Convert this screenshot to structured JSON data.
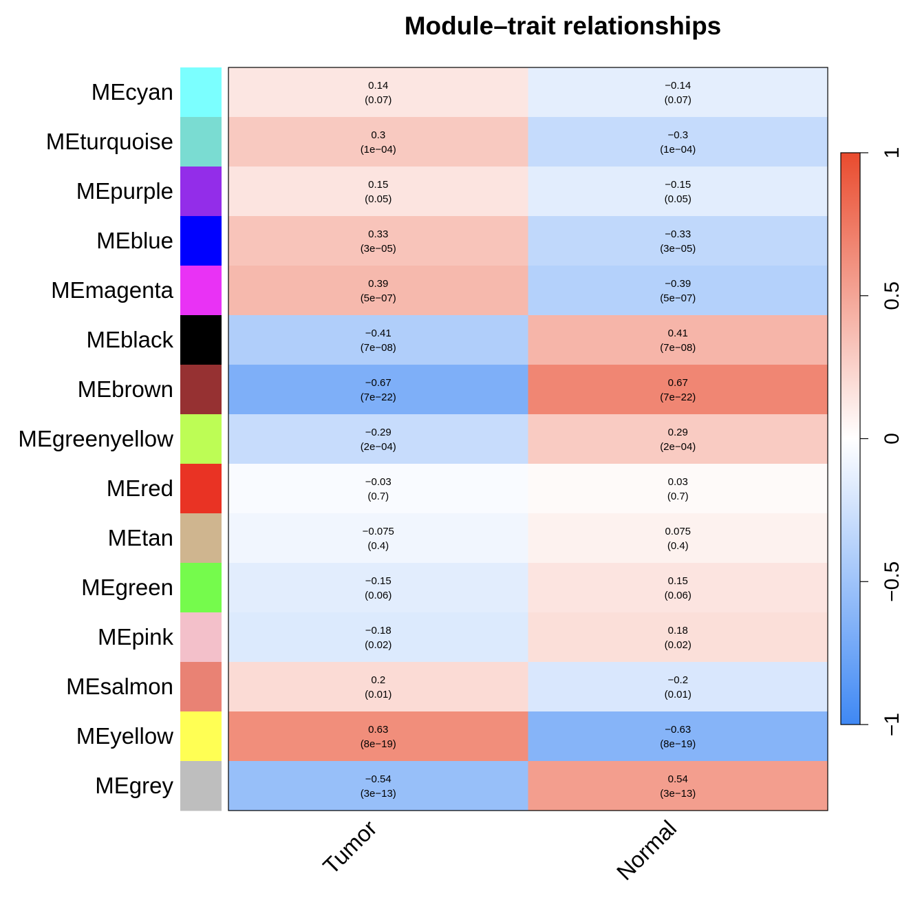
{
  "chart_data": {
    "type": "heatmap",
    "title": "Module–trait relationships",
    "rows": [
      {
        "label": "MEcyan",
        "module_color": "#7BFFFF"
      },
      {
        "label": "MEturquoise",
        "module_color": "#7ADCD2"
      },
      {
        "label": "MEpurple",
        "module_color": "#932DE9"
      },
      {
        "label": "MEblue",
        "module_color": "#0000FF"
      },
      {
        "label": "MEmagenta",
        "module_color": "#E932F5"
      },
      {
        "label": "MEblack",
        "module_color": "#000000"
      },
      {
        "label": "MEbrown",
        "module_color": "#963132"
      },
      {
        "label": "MEgreenyellow",
        "module_color": "#BDFD55"
      },
      {
        "label": "MEred",
        "module_color": "#E93324"
      },
      {
        "label": "MEtan",
        "module_color": "#CFB58F"
      },
      {
        "label": "MEgreen",
        "module_color": "#75FB4C"
      },
      {
        "label": "MEpink",
        "module_color": "#F3C0CA"
      },
      {
        "label": "MEsalmon",
        "module_color": "#E98274"
      },
      {
        "label": "MEyellow",
        "module_color": "#FFFF54"
      },
      {
        "label": "MEgrey",
        "module_color": "#BEBEBE"
      }
    ],
    "columns": [
      "Tumor",
      "Normal"
    ],
    "values": [
      [
        0.14,
        -0.14
      ],
      [
        0.3,
        -0.3
      ],
      [
        0.15,
        -0.15
      ],
      [
        0.33,
        -0.33
      ],
      [
        0.39,
        -0.39
      ],
      [
        -0.41,
        0.41
      ],
      [
        -0.67,
        0.67
      ],
      [
        -0.29,
        0.29
      ],
      [
        -0.03,
        0.03
      ],
      [
        -0.075,
        0.075
      ],
      [
        -0.15,
        0.15
      ],
      [
        -0.18,
        0.18
      ],
      [
        0.2,
        -0.2
      ],
      [
        0.63,
        -0.63
      ],
      [
        -0.54,
        0.54
      ]
    ],
    "cell_text": [
      [
        [
          "0.14",
          "(0.07)"
        ],
        [
          "−0.14",
          "(0.07)"
        ]
      ],
      [
        [
          "0.3",
          "(1e−04)"
        ],
        [
          "−0.3",
          "(1e−04)"
        ]
      ],
      [
        [
          "0.15",
          "(0.05)"
        ],
        [
          "−0.15",
          "(0.05)"
        ]
      ],
      [
        [
          "0.33",
          "(3e−05)"
        ],
        [
          "−0.33",
          "(3e−05)"
        ]
      ],
      [
        [
          "0.39",
          "(5e−07)"
        ],
        [
          "−0.39",
          "(5e−07)"
        ]
      ],
      [
        [
          "−0.41",
          "(7e−08)"
        ],
        [
          "0.41",
          "(7e−08)"
        ]
      ],
      [
        [
          "−0.67",
          "(7e−22)"
        ],
        [
          "0.67",
          "(7e−22)"
        ]
      ],
      [
        [
          "−0.29",
          "(2e−04)"
        ],
        [
          "0.29",
          "(2e−04)"
        ]
      ],
      [
        [
          "−0.03",
          "(0.7)"
        ],
        [
          "0.03",
          "(0.7)"
        ]
      ],
      [
        [
          "−0.075",
          "(0.4)"
        ],
        [
          "0.075",
          "(0.4)"
        ]
      ],
      [
        [
          "−0.15",
          "(0.06)"
        ],
        [
          "0.15",
          "(0.06)"
        ]
      ],
      [
        [
          "−0.18",
          "(0.02)"
        ],
        [
          "0.18",
          "(0.02)"
        ]
      ],
      [
        [
          "0.2",
          "(0.01)"
        ],
        [
          "−0.2",
          "(0.01)"
        ]
      ],
      [
        [
          "0.63",
          "(8e−19)"
        ],
        [
          "−0.63",
          "(8e−19)"
        ]
      ],
      [
        [
          "−0.54",
          "(3e−13)"
        ],
        [
          "0.54",
          "(3e−13)"
        ]
      ]
    ],
    "color_scale": {
      "min": -1,
      "max": 1,
      "colors": [
        "#3F88F4",
        "#FFFFFF",
        "#E94B2E"
      ],
      "ticks": [
        {
          "value": 1,
          "label": "1"
        },
        {
          "value": 0.5,
          "label": "0.5"
        },
        {
          "value": 0,
          "label": "0"
        },
        {
          "value": -0.5,
          "label": "−0.5"
        },
        {
          "value": -1,
          "label": "−1"
        }
      ]
    },
    "legend_position": "right",
    "grid": false
  }
}
